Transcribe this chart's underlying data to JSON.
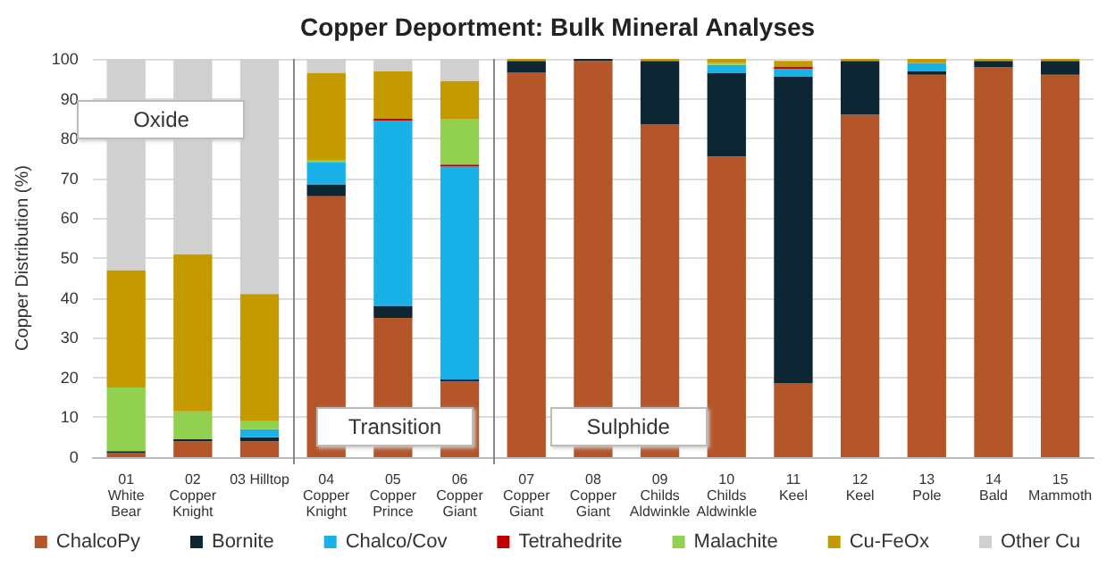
{
  "chart_data": {
    "type": "bar",
    "title": "Copper Deportment: Bulk Mineral Analyses",
    "ylabel": "Copper Distribution (%)",
    "categories": [
      "01\nWhite\nBear",
      "02\nCopper\nKnight",
      "03 Hilltop",
      "04\nCopper\nKnight",
      "05\nCopper\nPrince",
      "06\nCopper\nGiant",
      "07\nCopper\nGiant",
      "08\nCopper\nGiant",
      "09\nChilds\nAldwinkle",
      "10\nChilds\nAldwinkle",
      "11\nKeel",
      "12\nKeel",
      "13\nPole",
      "14\nBald",
      "15\nMammoth"
    ],
    "series": [
      {
        "name": "ChalcoPy",
        "color": "#b5562a",
        "values": [
          1,
          4,
          4,
          65.5,
          35,
          19,
          96.5,
          99.5,
          83.5,
          75.5,
          18.5,
          86,
          96,
          98,
          96
        ]
      },
      {
        "name": "Bornite",
        "color": "#0d2633",
        "values": [
          0.5,
          0.5,
          1,
          3,
          3,
          0.5,
          3,
          0.5,
          16,
          21,
          77,
          13.5,
          1,
          1.5,
          3.5
        ]
      },
      {
        "name": "Chalco/Cov",
        "color": "#19b2e8",
        "values": [
          0,
          0,
          2,
          5.5,
          46.5,
          53.5,
          0,
          0,
          0,
          2,
          2,
          0,
          2,
          0,
          0
        ]
      },
      {
        "name": "Tetrahedrite",
        "color": "#c00000",
        "values": [
          0,
          0,
          0,
          0,
          0.5,
          0.5,
          0,
          0,
          0,
          0,
          0.5,
          0,
          0,
          0,
          0
        ]
      },
      {
        "name": "Malachite",
        "color": "#92d050",
        "values": [
          16,
          7,
          2,
          0.5,
          0,
          11.5,
          0,
          0,
          0,
          0.5,
          0,
          0,
          0,
          0,
          0
        ]
      },
      {
        "name": "Cu-FeOx",
        "color": "#c49a00",
        "values": [
          29.5,
          39.5,
          32,
          22,
          12,
          9.5,
          0.5,
          0,
          0.5,
          1,
          1.5,
          0.5,
          1,
          0.5,
          0.5
        ]
      },
      {
        "name": "Other Cu",
        "color": "#d0d0d0",
        "values": [
          53,
          49,
          59,
          3.5,
          3,
          5.5,
          0,
          0,
          0,
          0,
          null,
          0,
          0,
          0,
          0
        ]
      }
    ],
    "stacked": true,
    "ylim": [
      0,
      100
    ],
    "yticks": [
      0,
      10,
      20,
      30,
      40,
      50,
      60,
      70,
      80,
      90,
      100
    ],
    "grid": "y",
    "legend": "bottom",
    "annotations": [
      "Oxide",
      "Transition",
      "Sulphide"
    ]
  }
}
